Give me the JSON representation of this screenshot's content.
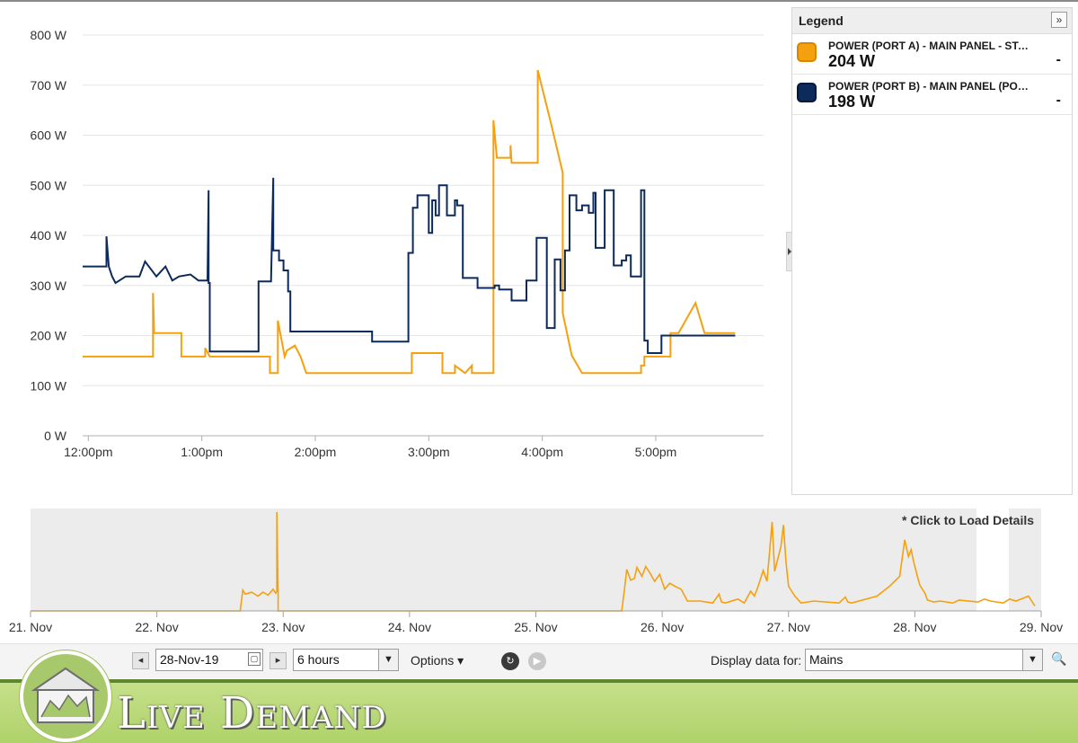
{
  "main_chart": {
    "chart_data": {
      "type": "line",
      "title": "",
      "xlabel": "",
      "ylabel": "",
      "y_ticks": [
        "0 W",
        "100 W",
        "200 W",
        "300 W",
        "400 W",
        "500 W",
        "600 W",
        "700 W",
        "800 W"
      ],
      "x_ticks": [
        "12:00pm",
        "1:00pm",
        "2:00pm",
        "3:00pm",
        "4:00pm",
        "5:00pm"
      ],
      "ylim": [
        0,
        800
      ],
      "xlim_hours": [
        11.95,
        17.95
      ],
      "grid": true,
      "series": [
        {
          "name": "POWER (PORT A) - MAIN PANEL - STA...",
          "color": "#f5a00f",
          "x": [
            11.95,
            12.57,
            12.57,
            12.58,
            12.58,
            12.82,
            12.82,
            13.03,
            13.03,
            13.07,
            13.07,
            13.6,
            13.6,
            13.67,
            13.67,
            13.73,
            13.73,
            13.75,
            13.75,
            13.82,
            13.82,
            13.87,
            13.87,
            13.92,
            13.92,
            14.85,
            14.85,
            15.12,
            15.12,
            15.23,
            15.23,
            15.32,
            15.32,
            15.38,
            15.38,
            15.57,
            15.57,
            15.6,
            15.6,
            15.61,
            15.61,
            15.72,
            15.72,
            15.73,
            15.73,
            15.96,
            15.96,
            16.07,
            16.07,
            16.18,
            16.18,
            16.26,
            16.26,
            16.35,
            16.35,
            16.87,
            16.87,
            16.9,
            16.9,
            16.92,
            16.92,
            17.13,
            17.13,
            17.2,
            17.2,
            17.35,
            17.35,
            17.43,
            17.43,
            17.7
          ],
          "y": [
            158,
            158,
            285,
            205,
            205,
            205,
            158,
            158,
            175,
            158,
            158,
            158,
            125,
            125,
            230,
            158,
            158,
            170,
            170,
            180,
            180,
            158,
            158,
            125,
            125,
            125,
            165,
            165,
            125,
            125,
            140,
            125,
            125,
            140,
            125,
            125,
            630,
            555,
            555,
            555,
            555,
            555,
            580,
            545,
            545,
            545,
            730,
            630,
            630,
            525,
            245,
            160,
            160,
            125,
            125,
            125,
            140,
            140,
            158,
            158,
            158,
            158,
            205,
            205,
            205,
            265,
            265,
            205,
            205,
            205
          ]
        },
        {
          "name": "POWER (PORT B) - MAIN PANEL (POR...",
          "color": "#0c2a5c",
          "x": [
            11.95,
            12.16,
            12.16,
            12.18,
            12.18,
            12.21,
            12.21,
            12.24,
            12.24,
            12.33,
            12.33,
            12.45,
            12.45,
            12.5,
            12.5,
            12.6,
            12.6,
            12.68,
            12.68,
            12.74,
            12.74,
            12.8,
            12.8,
            12.9,
            12.9,
            12.97,
            12.97,
            13.05,
            13.05,
            13.06,
            13.06,
            13.07,
            13.07,
            13.5,
            13.5,
            13.61,
            13.61,
            13.63,
            13.63,
            13.68,
            13.68,
            13.72,
            13.72,
            13.76,
            13.76,
            13.78,
            13.78,
            14.48,
            14.48,
            14.5,
            14.5,
            14.79,
            14.79,
            14.82,
            14.82,
            14.86,
            14.86,
            14.9,
            14.9,
            15.0,
            15.0,
            15.03,
            15.03,
            15.06,
            15.06,
            15.09,
            15.09,
            15.16,
            15.16,
            15.23,
            15.23,
            15.25,
            15.25,
            15.3,
            15.3,
            15.43,
            15.43,
            15.58,
            15.58,
            15.62,
            15.62,
            15.67,
            15.67,
            15.73,
            15.73,
            15.8,
            15.8,
            15.86,
            15.86,
            15.92,
            15.92,
            15.95,
            15.95,
            16.04,
            16.04,
            16.11,
            16.11,
            16.16,
            16.16,
            16.2,
            16.2,
            16.24,
            16.24,
            16.3,
            16.3,
            16.35,
            16.35,
            16.41,
            16.41,
            16.45,
            16.45,
            16.47,
            16.47,
            16.55,
            16.55,
            16.63,
            16.63,
            16.7,
            16.7,
            16.74,
            16.74,
            16.78,
            16.78,
            16.84,
            16.84,
            16.87,
            16.87,
            16.9,
            16.9,
            16.93,
            16.93,
            16.95,
            16.95,
            17.05,
            17.05,
            17.13,
            17.13,
            17.7
          ],
          "y": [
            338,
            338,
            398,
            338,
            338,
            318,
            318,
            305,
            305,
            318,
            318,
            318,
            318,
            348,
            348,
            318,
            318,
            338,
            338,
            310,
            310,
            318,
            318,
            322,
            322,
            310,
            310,
            310,
            310,
            490,
            305,
            305,
            168,
            168,
            308,
            308,
            308,
            515,
            370,
            370,
            350,
            350,
            330,
            330,
            288,
            288,
            208,
            208,
            208,
            208,
            188,
            188,
            188,
            188,
            365,
            365,
            455,
            455,
            480,
            480,
            405,
            405,
            470,
            470,
            440,
            440,
            500,
            500,
            440,
            440,
            470,
            470,
            460,
            460,
            315,
            315,
            295,
            295,
            300,
            300,
            292,
            292,
            292,
            292,
            270,
            270,
            270,
            270,
            310,
            310,
            310,
            310,
            395,
            395,
            215,
            215,
            352,
            352,
            290,
            290,
            370,
            370,
            480,
            480,
            450,
            450,
            460,
            460,
            445,
            445,
            485,
            485,
            375,
            375,
            490,
            490,
            340,
            340,
            350,
            350,
            360,
            360,
            318,
            318,
            318,
            318,
            490,
            490,
            190,
            190,
            165,
            165,
            165,
            165,
            200,
            200,
            200,
            200
          ]
        }
      ]
    }
  },
  "legend": {
    "title": "Legend",
    "collapse_icon": "»",
    "items": [
      {
        "name": "POWER (PORT A) - MAIN PANEL - STA...",
        "value": "204 W",
        "dash": "-",
        "color": "#f5a00f",
        "border": "#d88600"
      },
      {
        "name": "POWER (PORT B) - MAIN PANEL (POR...",
        "value": "198 W",
        "dash": "-",
        "color": "#0c2a5c",
        "border": "#05183a"
      }
    ]
  },
  "overview": {
    "hint": "* Click to Load Details",
    "x_ticks": [
      "21. Nov",
      "22. Nov",
      "23. Nov",
      "24. Nov",
      "25. Nov",
      "26. Nov",
      "27. Nov",
      "28. Nov",
      "29. Nov"
    ],
    "chart_data": {
      "type": "area",
      "title": "",
      "xlabel": "",
      "ylabel": "",
      "x_days": [
        21,
        22.66,
        22.68,
        22.7,
        22.75,
        22.8,
        22.84,
        22.88,
        22.92,
        22.94,
        22.95,
        22.95,
        22.96,
        22.96,
        23.0,
        25.68,
        25.7,
        25.72,
        25.75,
        25.78,
        25.8,
        25.84,
        25.87,
        25.9,
        25.94,
        25.98,
        26.02,
        26.06,
        26.1,
        26.15,
        26.2,
        26.3,
        26.4,
        26.45,
        26.47,
        26.5,
        26.6,
        26.65,
        26.7,
        26.73,
        26.76,
        26.8,
        26.83,
        26.85,
        26.87,
        26.89,
        26.92,
        26.94,
        26.96,
        26.98,
        27.0,
        27.05,
        27.1,
        27.2,
        27.4,
        27.45,
        27.47,
        27.5,
        27.7,
        27.8,
        27.88,
        27.92,
        27.95,
        27.97,
        27.99,
        28.02,
        28.04,
        28.08,
        28.1,
        28.15,
        28.2,
        28.3,
        28.35,
        28.5,
        28.55,
        28.6,
        28.7,
        28.75,
        28.8,
        28.9,
        28.95
      ],
      "y_kw": [
        0,
        0,
        0.21,
        0.17,
        0.19,
        0.15,
        0.19,
        0.16,
        0.22,
        0.18,
        0.2,
        1.0,
        0.15,
        0,
        0,
        0,
        0.2,
        0.42,
        0.31,
        0.33,
        0.44,
        0.35,
        0.45,
        0.39,
        0.3,
        0.37,
        0.22,
        0.28,
        0.25,
        0.22,
        0.1,
        0.1,
        0.08,
        0.17,
        0.09,
        0.08,
        0.12,
        0.08,
        0.2,
        0.15,
        0.25,
        0.41,
        0.3,
        0.6,
        0.9,
        0.4,
        0.55,
        0.65,
        0.87,
        0.5,
        0.25,
        0.15,
        0.08,
        0.1,
        0.08,
        0.14,
        0.09,
        0.08,
        0.15,
        0.25,
        0.35,
        0.72,
        0.55,
        0.62,
        0.5,
        0.35,
        0.26,
        0.18,
        0.11,
        0.09,
        0.1,
        0.08,
        0.11,
        0.09,
        0.12,
        0.1,
        0.08,
        0.12,
        0.1,
        0.15,
        0.05
      ]
    }
  },
  "toolbar": {
    "prev_icon": "◂",
    "date_value": "28-Nov-19",
    "calendar_icon": "▢",
    "next_icon": "▸",
    "range_value": "6 hours",
    "dropdown_icon": "▼",
    "options_label": "Options ▾",
    "display_label": "Display data for:",
    "display_value": "Mains",
    "search_icon": "🔍"
  },
  "footer": {
    "title": "Live Demand"
  }
}
